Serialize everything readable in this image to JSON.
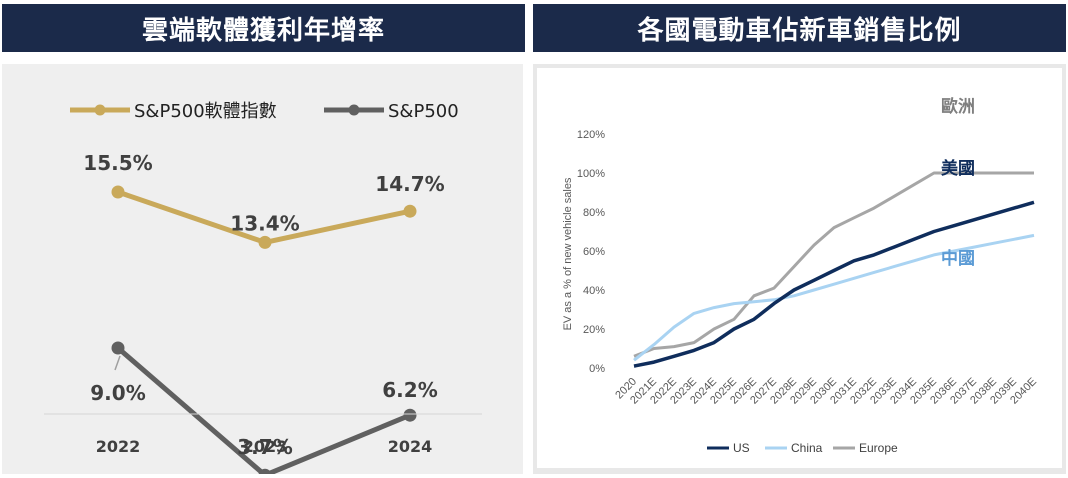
{
  "left_title": "雲端軟體獲利年增率",
  "right_title": "各國電動車佔新車銷售比例",
  "chart_data": [
    {
      "type": "line",
      "title": "雲端軟體獲利年增率",
      "categories": [
        "2022",
        "2023",
        "2024"
      ],
      "series": [
        {
          "name": "S&P500軟體指數",
          "values": [
            15.5,
            13.4,
            14.7
          ],
          "labels": [
            "15.5%",
            "13.4%",
            "14.7%"
          ],
          "color": "#c9a95a"
        },
        {
          "name": "S&P500",
          "values": [
            9.0,
            3.7,
            6.2
          ],
          "labels": [
            "9.0%",
            "3.7%",
            "6.2%"
          ],
          "color": "#606060"
        }
      ],
      "xlabel": "",
      "ylabel": ""
    },
    {
      "type": "line",
      "title": "各國電動車佔新車銷售比例",
      "categories": [
        "2020",
        "2021E",
        "2022E",
        "2023E",
        "2024E",
        "2025E",
        "2026E",
        "2027E",
        "2028E",
        "2029E",
        "2030E",
        "2031E",
        "2032E",
        "2033E",
        "2034E",
        "2035E",
        "2036E",
        "2037E",
        "2038E",
        "2039E",
        "2040E"
      ],
      "series": [
        {
          "name": "US",
          "label": "美國",
          "color": "#0f2d5c",
          "values": [
            1,
            3,
            6,
            9,
            13,
            20,
            25,
            33,
            40,
            45,
            50,
            55,
            58,
            62,
            66,
            70,
            73,
            76,
            79,
            82,
            85
          ]
        },
        {
          "name": "China",
          "label": "中國",
          "color": "#a9d3f2",
          "values": [
            4,
            12,
            21,
            28,
            31,
            33,
            34,
            35,
            37,
            40,
            43,
            46,
            49,
            52,
            55,
            58,
            60,
            62,
            64,
            66,
            68
          ]
        },
        {
          "name": "Europe",
          "label": "歐洲",
          "color": "#a6a6a6",
          "values": [
            6,
            10,
            11,
            13,
            20,
            25,
            37,
            41,
            52,
            63,
            72,
            77,
            82,
            88,
            94,
            100,
            100,
            100,
            100,
            100,
            100
          ]
        }
      ],
      "yticks": [
        "0%",
        "20%",
        "40%",
        "60%",
        "80%",
        "100%",
        "120%"
      ],
      "ylim": [
        0,
        120
      ],
      "ylabel": "EV as a % of new vehicle sales",
      "xlabel": "",
      "legend": [
        "US",
        "China",
        "Europe"
      ],
      "legend_position": "bottom"
    }
  ]
}
